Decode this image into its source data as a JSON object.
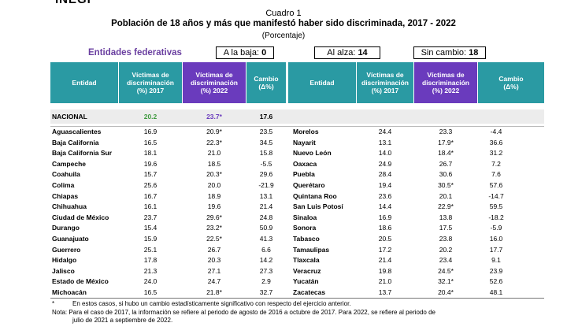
{
  "logo": "INEGI",
  "cuadro": "Cuadro 1",
  "title": "Población de 18 años y más que manifestó haber sido discriminada, 2017 - 2022",
  "unit": "(Porcentaje)",
  "entidades_label": "Entidades federativas",
  "summary": {
    "baja_label": "A la baja:",
    "baja_value": "0",
    "alza_label": "Al alza:",
    "alza_value": "14",
    "sin_label": "Sin cambio:",
    "sin_value": "18"
  },
  "headers": {
    "entidad": "Entidad",
    "v2017": "Víctimas de discriminación (%) 2017",
    "v2022": "Víctimas de discriminación (%) 2022",
    "cambio": "Cambio (Δ%)"
  },
  "nacional": {
    "name": "NACIONAL",
    "v2017": "20.2",
    "v2022": "23.7*",
    "cambio": "17.6"
  },
  "left_rows": [
    {
      "name": "Aguascalientes",
      "v2017": "16.9",
      "v2022": "20.9*",
      "cambio": "23.5"
    },
    {
      "name": "Baja California",
      "v2017": "16.5",
      "v2022": "22.3*",
      "cambio": "34.5"
    },
    {
      "name": "Baja California Sur",
      "v2017": "18.1",
      "v2022": "21.0",
      "cambio": "15.8"
    },
    {
      "name": "Campeche",
      "v2017": "19.6",
      "v2022": "18.5",
      "cambio": "-5.5"
    },
    {
      "name": "Coahuila",
      "v2017": "15.7",
      "v2022": "20.3*",
      "cambio": "29.6"
    },
    {
      "name": "Colima",
      "v2017": "25.6",
      "v2022": "20.0",
      "cambio": "-21.9"
    },
    {
      "name": "Chiapas",
      "v2017": "16.7",
      "v2022": "18.9",
      "cambio": "13.1"
    },
    {
      "name": "Chihuahua",
      "v2017": "16.1",
      "v2022": "19.6",
      "cambio": "21.4"
    },
    {
      "name": "Ciudad de México",
      "v2017": "23.7",
      "v2022": "29.6*",
      "cambio": "24.8"
    },
    {
      "name": "Durango",
      "v2017": "15.4",
      "v2022": "23.2*",
      "cambio": "50.9"
    },
    {
      "name": "Guanajuato",
      "v2017": "15.9",
      "v2022": "22.5*",
      "cambio": "41.3"
    },
    {
      "name": "Guerrero",
      "v2017": "25.1",
      "v2022": "26.7",
      "cambio": "6.6"
    },
    {
      "name": "Hidalgo",
      "v2017": "17.8",
      "v2022": "20.3",
      "cambio": "14.2"
    },
    {
      "name": "Jalisco",
      "v2017": "21.3",
      "v2022": "27.1",
      "cambio": "27.3"
    },
    {
      "name": "Estado de México",
      "v2017": "24.0",
      "v2022": "24.7",
      "cambio": "2.9"
    },
    {
      "name": "Michoacán",
      "v2017": "16.5",
      "v2022": "21.8*",
      "cambio": "32.7"
    }
  ],
  "right_rows": [
    {
      "name": "Morelos",
      "v2017": "24.4",
      "v2022": "23.3",
      "cambio": "-4.4"
    },
    {
      "name": "Nayarit",
      "v2017": "13.1",
      "v2022": "17.9*",
      "cambio": "36.6"
    },
    {
      "name": "Nuevo León",
      "v2017": "14.0",
      "v2022": "18.4*",
      "cambio": "31.2"
    },
    {
      "name": "Oaxaca",
      "v2017": "24.9",
      "v2022": "26.7",
      "cambio": "7.2"
    },
    {
      "name": "Puebla",
      "v2017": "28.4",
      "v2022": "30.6",
      "cambio": "7.6"
    },
    {
      "name": "Querétaro",
      "v2017": "19.4",
      "v2022": "30.5*",
      "cambio": "57.6"
    },
    {
      "name": "Quintana Roo",
      "v2017": "23.6",
      "v2022": "20.1",
      "cambio": "-14.7"
    },
    {
      "name": "San Luis Potosí",
      "v2017": "14.4",
      "v2022": "22.9*",
      "cambio": "59.5"
    },
    {
      "name": "Sinaloa",
      "v2017": "16.9",
      "v2022": "13.8",
      "cambio": "-18.2"
    },
    {
      "name": "Sonora",
      "v2017": "18.6",
      "v2022": "17.5",
      "cambio": "-5.9"
    },
    {
      "name": "Tabasco",
      "v2017": "20.5",
      "v2022": "23.8",
      "cambio": "16.0"
    },
    {
      "name": "Tamaulipas",
      "v2017": "17.2",
      "v2022": "20.2",
      "cambio": "17.7"
    },
    {
      "name": "Tlaxcala",
      "v2017": "21.4",
      "v2022": "23.4",
      "cambio": "9.1"
    },
    {
      "name": "Veracruz",
      "v2017": "19.8",
      "v2022": "24.5*",
      "cambio": "23.9"
    },
    {
      "name": "Yucatán",
      "v2017": "21.0",
      "v2022": "32.1*",
      "cambio": "52.6"
    },
    {
      "name": "Zacatecas",
      "v2017": "13.7",
      "v2022": "20.4*",
      "cambio": "48.1"
    }
  ],
  "notes": {
    "asterisk_mark": "*",
    "asterisk_text": "En estos casos, si hubo un cambio estadísticamente significativo con respecto del ejercicio anterior.",
    "nota_line1": "Nota: Para el caso de 2017, la información se refiere al periodo de agosto de 2016 a octubre de 2017. Para 2022, se refiere al periodo de",
    "nota_line2": "julio de 2021 a septiembre de 2022."
  }
}
